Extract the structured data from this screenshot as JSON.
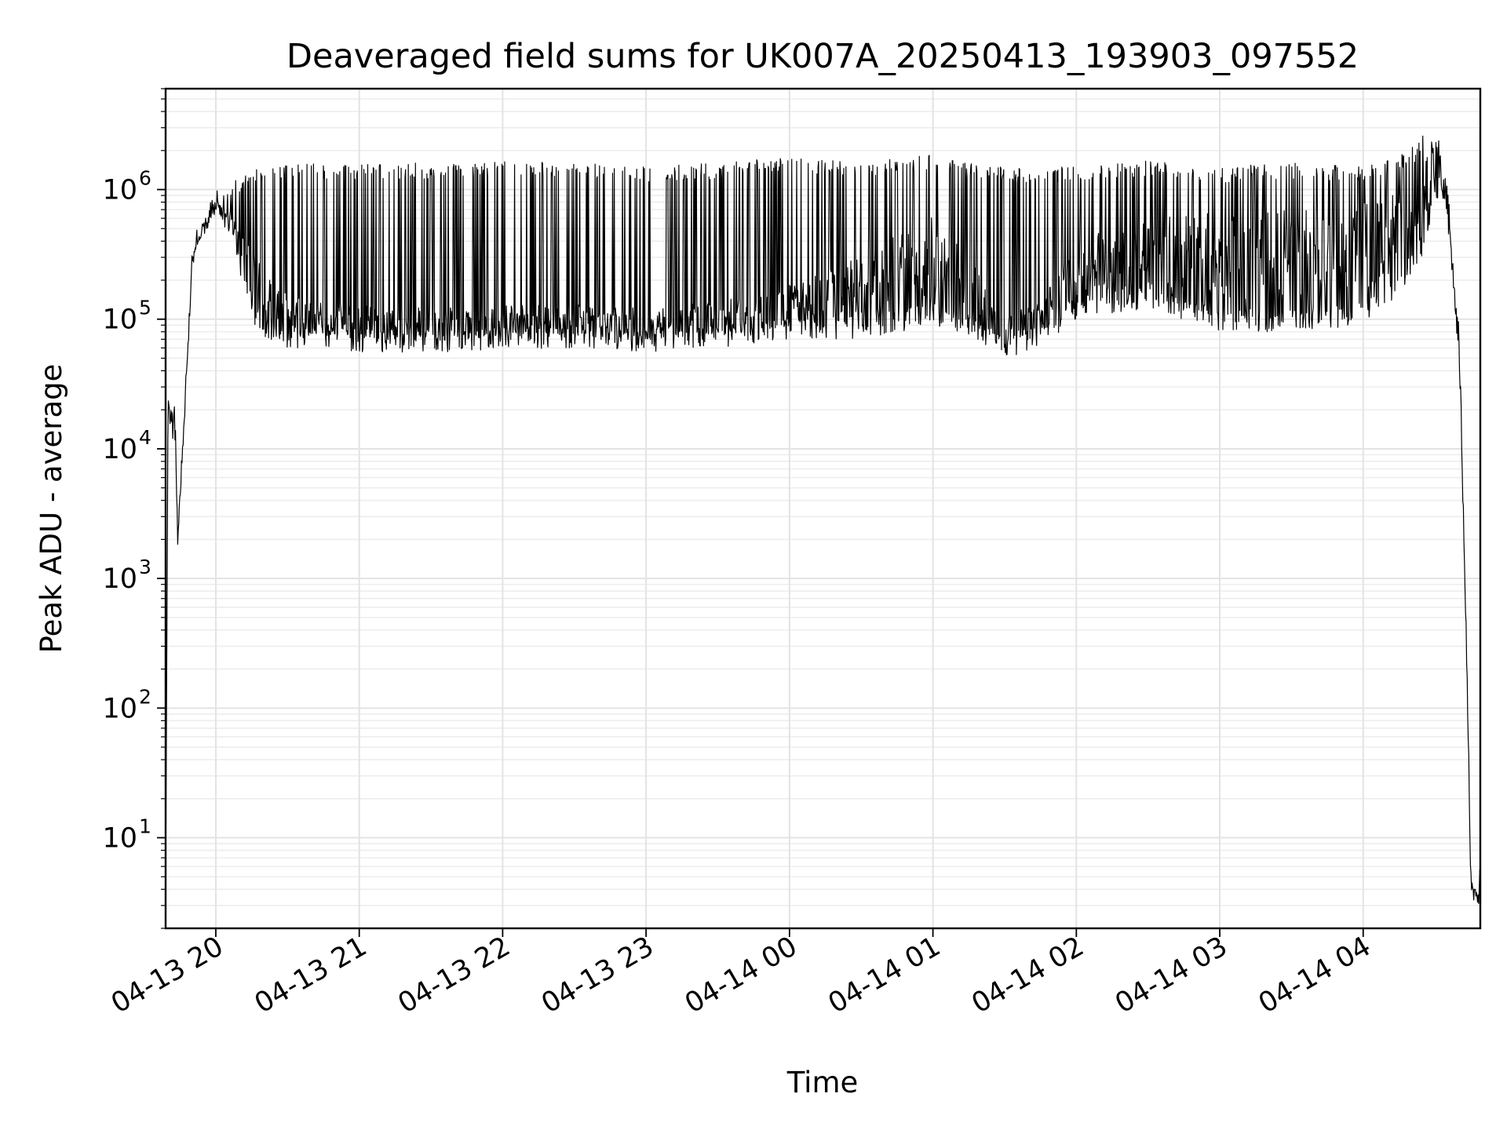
{
  "chart_data": {
    "type": "line",
    "title": "Deaveraged field sums for UK007A_20250413_193903_097552",
    "xlabel": "Time",
    "ylabel": "Peak ADU - average",
    "yscale": "log",
    "ylim": [
      2,
      6000000
    ],
    "xlim": [
      "2025-04-13 19:39",
      "2025-04-14 04:49"
    ],
    "grid": "both",
    "x_ticks": [
      {
        "t": "2025-04-13 20:00",
        "label": "04-13 20"
      },
      {
        "t": "2025-04-13 21:00",
        "label": "04-13 21"
      },
      {
        "t": "2025-04-13 22:00",
        "label": "04-13 22"
      },
      {
        "t": "2025-04-13 23:00",
        "label": "04-13 23"
      },
      {
        "t": "2025-04-14 00:00",
        "label": "04-14 00"
      },
      {
        "t": "2025-04-14 01:00",
        "label": "04-14 01"
      },
      {
        "t": "2025-04-14 02:00",
        "label": "04-14 02"
      },
      {
        "t": "2025-04-14 03:00",
        "label": "04-14 03"
      },
      {
        "t": "2025-04-14 04:00",
        "label": "04-14 04"
      }
    ],
    "y_ticks": [
      {
        "value": 10,
        "base": "10",
        "exp": "1"
      },
      {
        "value": 100,
        "base": "10",
        "exp": "2"
      },
      {
        "value": 1000,
        "base": "10",
        "exp": "3"
      },
      {
        "value": 10000,
        "base": "10",
        "exp": "4"
      },
      {
        "value": 100000,
        "base": "10",
        "exp": "5"
      },
      {
        "value": 1000000,
        "base": "10",
        "exp": "6"
      }
    ],
    "series": [
      {
        "color": "#000000",
        "x": [
          "2025-04-13 19:39",
          "2025-04-13 19:40",
          "2025-04-13 19:41",
          "2025-04-13 19:42",
          "2025-04-13 19:43",
          "2025-04-13 19:44",
          "2025-04-13 19:45",
          "2025-04-13 19:46",
          "2025-04-13 19:48",
          "2025-04-13 19:50",
          "2025-04-13 19:52",
          "2025-04-13 19:54",
          "2025-04-13 19:56",
          "2025-04-13 19:58",
          "2025-04-13 20:00",
          "2025-04-13 20:04",
          "2025-04-13 20:08",
          "2025-04-13 20:12",
          "2025-04-13 20:16",
          "2025-04-13 20:20",
          "2025-04-13 20:25",
          "2025-04-13 20:30",
          "2025-04-13 20:40",
          "2025-04-13 21:00",
          "2025-04-13 21:30",
          "2025-04-13 22:00",
          "2025-04-13 22:30",
          "2025-04-13 23:00",
          "2025-04-13 23:30",
          "2025-04-14 00:00",
          "2025-04-14 00:30",
          "2025-04-14 01:00",
          "2025-04-14 01:15",
          "2025-04-14 01:30",
          "2025-04-14 01:45",
          "2025-04-14 02:00",
          "2025-04-14 02:30",
          "2025-04-14 03:00",
          "2025-04-14 03:30",
          "2025-04-14 04:00",
          "2025-04-14 04:15",
          "2025-04-14 04:25",
          "2025-04-14 04:30",
          "2025-04-14 04:33",
          "2025-04-14 04:36",
          "2025-04-14 04:38",
          "2025-04-14 04:40",
          "2025-04-14 04:41",
          "2025-04-14 04:42",
          "2025-04-14 04:43",
          "2025-04-14 04:44",
          "2025-04-14 04:45",
          "2025-04-14 04:46",
          "2025-04-14 04:47",
          "2025-04-14 04:48",
          "2025-04-14 04:49"
        ],
        "y": [
          3,
          25000,
          18000,
          14000,
          20000,
          1800,
          4000,
          9000,
          45000,
          250000,
          400000,
          480000,
          550000,
          650000,
          750000,
          650000,
          500000,
          300000,
          200000,
          150000,
          120000,
          110000,
          100000,
          95000,
          92000,
          95000,
          98000,
          90000,
          100000,
          130000,
          180000,
          300000,
          180000,
          80000,
          100000,
          250000,
          350000,
          300000,
          320000,
          350000,
          500000,
          1200000,
          1800000,
          1500000,
          600000,
          150000,
          60000,
          15000,
          2000,
          500,
          60,
          4,
          4,
          4,
          4,
          4
        ],
        "noise_envelope": {
          "low": [
            3,
            25000,
            12000,
            9000,
            12000,
            1700,
            3000,
            7000,
            40000,
            220000,
            350000,
            400000,
            450000,
            550000,
            600000,
            500000,
            350000,
            150000,
            90000,
            70000,
            65000,
            60000,
            60000,
            55000,
            55000,
            58000,
            60000,
            55000,
            60000,
            70000,
            70000,
            90000,
            70000,
            50000,
            60000,
            100000,
            120000,
            80000,
            80000,
            90000,
            150000,
            300000,
            700000,
            800000,
            400000,
            150000,
            60000,
            15000,
            2000,
            500,
            60,
            4,
            4,
            4,
            4,
            4
          ],
          "high": [
            3,
            26000,
            24000,
            20000,
            22000,
            1800,
            5000,
            11000,
            50000,
            280000,
            450000,
            550000,
            600000,
            800000,
            1000000,
            900000,
            1200000,
            1300000,
            1500000,
            1600000,
            1600000,
            1600000,
            1600000,
            1600000,
            1600000,
            1650000,
            1600000,
            1500000,
            1600000,
            1800000,
            1600000,
            1900000,
            1600000,
            1500000,
            1500000,
            1500000,
            1700000,
            1500000,
            1600000,
            1500000,
            1800000,
            2800000,
            2500000,
            2000000,
            800000,
            150000,
            60000,
            15000,
            2000,
            500,
            60,
            4,
            4,
            4,
            4,
            4
          ]
        }
      }
    ]
  }
}
